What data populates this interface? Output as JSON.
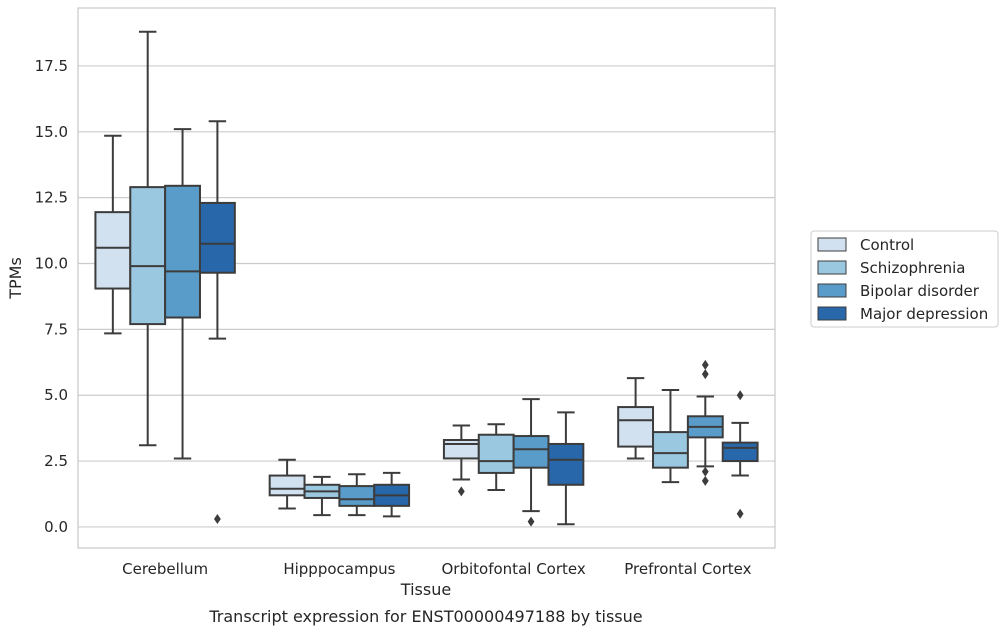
{
  "caption": "Transcript expression for ENST00000497188 by tissue",
  "chart_data": {
    "type": "box",
    "xlabel": "Tissue",
    "ylabel": "TPMs",
    "ylim": [
      -0.8,
      19.7
    ],
    "yticks": [
      "0.0",
      "2.5",
      "5.0",
      "7.5",
      "10.0",
      "12.5",
      "15.0",
      "17.5"
    ],
    "grid": true,
    "legend_position": "right",
    "categories": [
      "Cerebellum",
      "Hipppocampus",
      "Orbitofontal Cortex",
      "Prefrontal Cortex"
    ],
    "series": [
      {
        "name": "Control",
        "color": "#d1e1f0",
        "boxes": [
          {
            "whislo": 7.35,
            "q1": 9.05,
            "med": 10.6,
            "q3": 11.95,
            "whishi": 14.85,
            "fliers": []
          },
          {
            "whislo": 0.7,
            "q1": 1.2,
            "med": 1.45,
            "q3": 1.95,
            "whishi": 2.55,
            "fliers": []
          },
          {
            "whislo": 1.8,
            "q1": 2.6,
            "med": 3.15,
            "q3": 3.3,
            "whishi": 3.85,
            "fliers": [
              1.35
            ]
          },
          {
            "whislo": 2.6,
            "q1": 3.05,
            "med": 4.05,
            "q3": 4.55,
            "whishi": 5.65,
            "fliers": []
          }
        ]
      },
      {
        "name": "Schizophrenia",
        "color": "#9ac8e0",
        "boxes": [
          {
            "whislo": 3.1,
            "q1": 7.7,
            "med": 9.9,
            "q3": 12.9,
            "whishi": 18.8,
            "fliers": []
          },
          {
            "whislo": 0.45,
            "q1": 1.1,
            "med": 1.35,
            "q3": 1.6,
            "whishi": 1.9,
            "fliers": []
          },
          {
            "whislo": 1.4,
            "q1": 2.05,
            "med": 2.5,
            "q3": 3.5,
            "whishi": 3.9,
            "fliers": []
          },
          {
            "whislo": 1.7,
            "q1": 2.25,
            "med": 2.8,
            "q3": 3.6,
            "whishi": 5.2,
            "fliers": []
          }
        ]
      },
      {
        "name": "Bipolar disorder",
        "color": "#5a9cc9",
        "boxes": [
          {
            "whislo": 2.6,
            "q1": 7.95,
            "med": 9.7,
            "q3": 12.95,
            "whishi": 15.1,
            "fliers": []
          },
          {
            "whislo": 0.45,
            "q1": 0.8,
            "med": 1.05,
            "q3": 1.55,
            "whishi": 2.0,
            "fliers": []
          },
          {
            "whislo": 0.6,
            "q1": 2.25,
            "med": 2.95,
            "q3": 3.45,
            "whishi": 4.85,
            "fliers": [
              0.2
            ]
          },
          {
            "whislo": 2.3,
            "q1": 3.4,
            "med": 3.8,
            "q3": 4.2,
            "whishi": 4.95,
            "fliers": [
              1.75,
              2.1,
              5.8,
              6.15
            ]
          }
        ]
      },
      {
        "name": "Major depression",
        "color": "#2767aa",
        "boxes": [
          {
            "whislo": 7.15,
            "q1": 9.65,
            "med": 10.75,
            "q3": 12.3,
            "whishi": 15.4,
            "fliers": [
              0.3
            ]
          },
          {
            "whislo": 0.4,
            "q1": 0.8,
            "med": 1.2,
            "q3": 1.6,
            "whishi": 2.05,
            "fliers": []
          },
          {
            "whislo": 0.1,
            "q1": 1.6,
            "med": 2.55,
            "q3": 3.15,
            "whishi": 4.35,
            "fliers": []
          },
          {
            "whislo": 1.95,
            "q1": 2.5,
            "med": 3.0,
            "q3": 3.2,
            "whishi": 3.95,
            "fliers": [
              0.5,
              5.0
            ]
          }
        ]
      }
    ]
  }
}
